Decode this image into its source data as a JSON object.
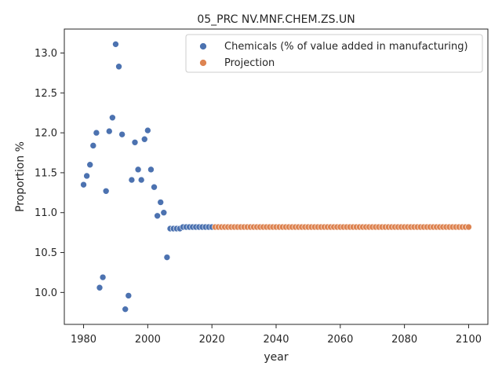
{
  "chart_data": {
    "type": "scatter",
    "title": "05_PRC NV.MNF.CHEM.ZS.UN",
    "xlabel": "year",
    "ylabel": "Proportion %",
    "xlim": [
      1974,
      2106
    ],
    "ylim": [
      9.6,
      13.3
    ],
    "xticks": [
      1980,
      2000,
      2020,
      2040,
      2060,
      2080,
      2100
    ],
    "yticks": [
      10.0,
      10.5,
      11.0,
      11.5,
      12.0,
      12.5,
      13.0
    ],
    "ytick_labels": [
      "10.0",
      "10.5",
      "11.0",
      "11.5",
      "12.0",
      "12.5",
      "13.0"
    ],
    "grid": false,
    "legend_position": "top-right",
    "series": [
      {
        "name": "Chemicals (% of value added in manufacturing)",
        "color": "#4c72b0",
        "x": [
          1980,
          1981,
          1982,
          1983,
          1984,
          1985,
          1986,
          1987,
          1988,
          1989,
          1990,
          1991,
          1992,
          1993,
          1994,
          1995,
          1996,
          1997,
          1998,
          1999,
          2000,
          2001,
          2002,
          2003,
          2004,
          2005,
          2006,
          2007,
          2008,
          2009,
          2010,
          2011,
          2012,
          2013,
          2014,
          2015,
          2016,
          2017,
          2018,
          2019,
          2020
        ],
        "y": [
          11.35,
          11.46,
          11.6,
          11.84,
          12.0,
          10.06,
          10.19,
          11.27,
          12.02,
          12.19,
          13.11,
          12.83,
          11.98,
          9.79,
          9.96,
          11.41,
          11.88,
          11.54,
          11.41,
          11.92,
          12.03,
          11.54,
          11.32,
          10.96,
          11.13,
          11.0,
          10.44,
          10.8,
          10.8,
          10.8,
          10.8,
          10.82,
          10.82,
          10.82,
          10.82,
          10.82,
          10.82,
          10.82,
          10.82,
          10.82,
          10.82
        ]
      },
      {
        "name": "Projection",
        "color": "#dd8452",
        "x_start": 2021,
        "x_end": 2100,
        "y_constant": 10.82
      }
    ]
  }
}
